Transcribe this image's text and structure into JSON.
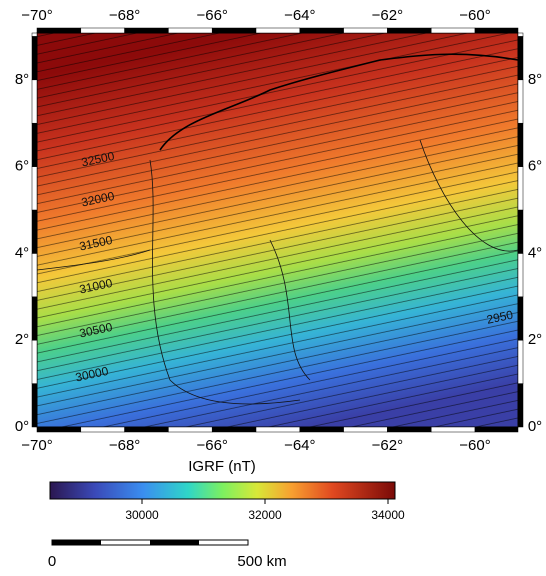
{
  "map": {
    "x_axis_labels": [
      "−70°",
      "−68°",
      "−66°",
      "−64°",
      "−62°",
      "−60°"
    ],
    "y_axis_labels": [
      "0°",
      "2°",
      "4°",
      "6°",
      "8°"
    ],
    "contour_labels": [
      "32500",
      "32000",
      "31500",
      "31000",
      "30500",
      "30000",
      "2950"
    ]
  },
  "colorbar": {
    "title": "IGRF (nT)",
    "ticks": [
      "30000",
      "32000",
      "34000"
    ]
  },
  "scale_bar": {
    "start": "0",
    "end": "500 km"
  }
}
